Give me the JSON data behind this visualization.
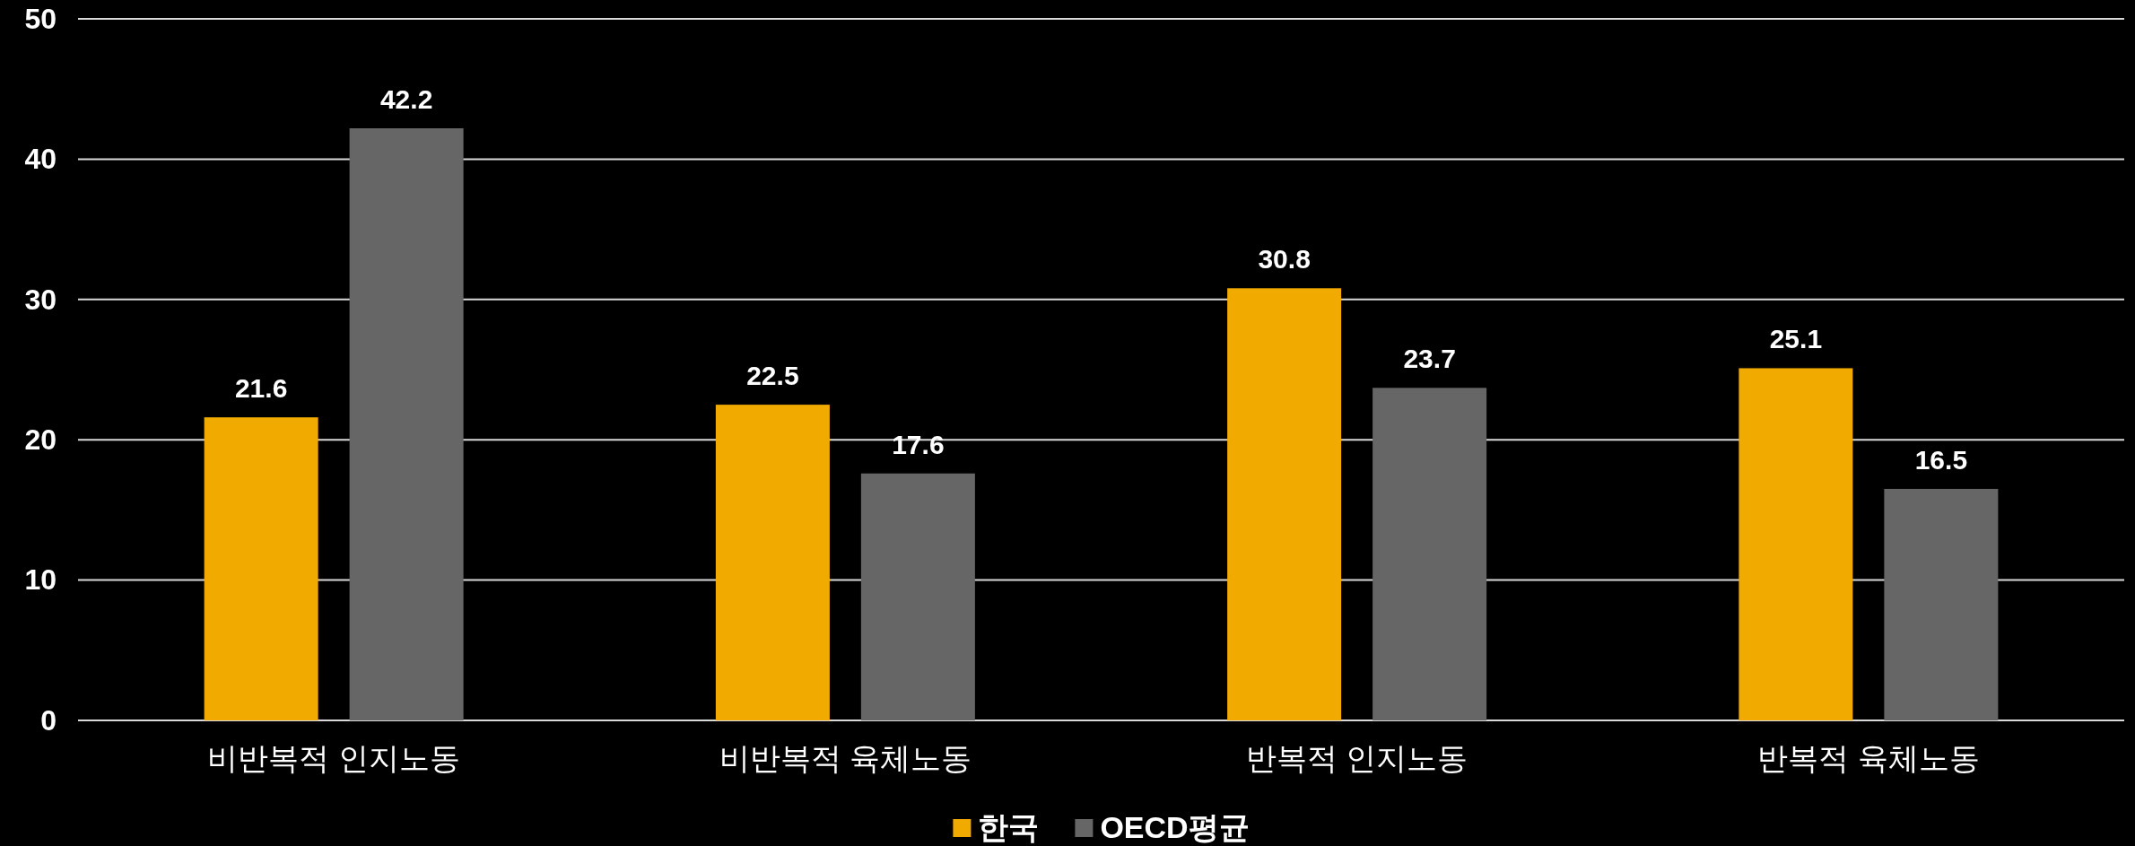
{
  "chart_data": {
    "type": "bar",
    "categories": [
      "비반복적 인지노동",
      "비반복적 육체노동",
      "반복적 인지노동",
      "반복적 육체노동"
    ],
    "series": [
      {
        "name": "한국",
        "color": "#f0aa00",
        "values": [
          21.6,
          22.5,
          30.8,
          25.1
        ]
      },
      {
        "name": "OECD평균",
        "color": "#666666",
        "values": [
          42.2,
          17.6,
          23.7,
          16.5
        ]
      }
    ],
    "ylim": [
      0,
      50
    ],
    "yticks": [
      0,
      10,
      20,
      30,
      40,
      50
    ],
    "grid": "y",
    "legend": "bottom",
    "data_labels": true
  }
}
